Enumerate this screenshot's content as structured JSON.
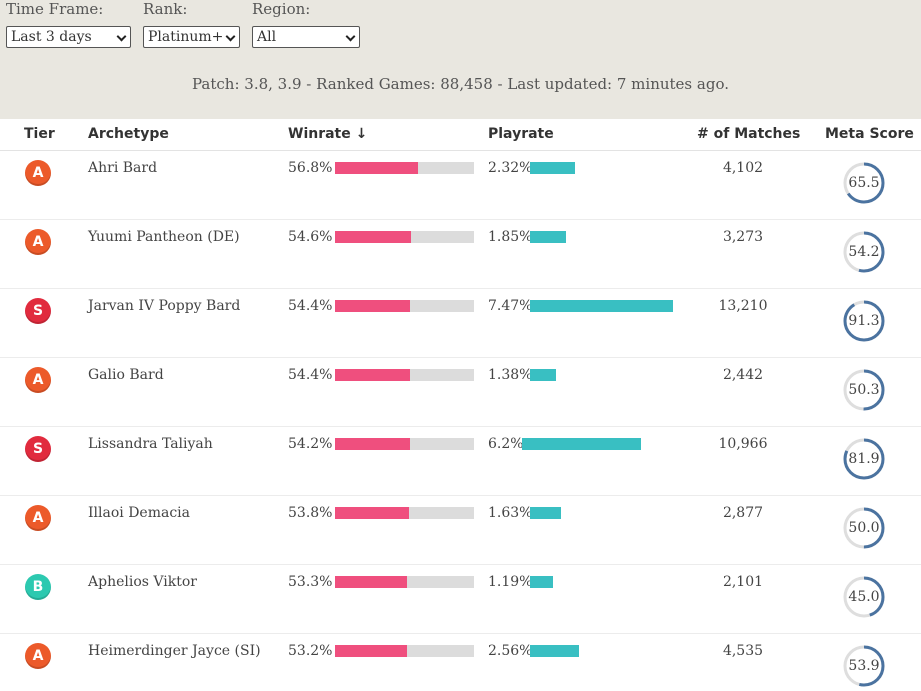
{
  "filters": {
    "time_frame": {
      "label": "Time Frame:",
      "value": "Last 3 days"
    },
    "rank": {
      "label": "Rank:",
      "value": "Platinum+"
    },
    "region": {
      "label": "Region:",
      "value": "All"
    }
  },
  "status_line": "Patch: 3.8, 3.9 - Ranked Games: 88,458 - Last updated: 7 minutes ago.",
  "columns": {
    "tier": "Tier",
    "archetype": "Archetype",
    "winrate": "Winrate ↓",
    "playrate": "Playrate",
    "matches": "# of Matches",
    "meta_score": "Meta Score"
  },
  "colors": {
    "winrate_bar": "#ef4f7e",
    "playrate_bar": "#39bfc2",
    "tier_A": "#ec5a2a",
    "tier_S": "#e12b3e",
    "tier_B": "#2cc9b0",
    "ring": "#4b73a0"
  },
  "rows": [
    {
      "tier": "A",
      "archetype": "Ahri Bard",
      "winrate": "56.8%",
      "winrate_value": 56.8,
      "playrate": "2.32%",
      "playrate_value": 2.32,
      "matches": "4,102",
      "meta_score": "65.5",
      "meta_value": 65.5
    },
    {
      "tier": "A",
      "archetype": "Yuumi Pantheon (DE)",
      "winrate": "54.6%",
      "winrate_value": 54.6,
      "playrate": "1.85%",
      "playrate_value": 1.85,
      "matches": "3,273",
      "meta_score": "54.2",
      "meta_value": 54.2
    },
    {
      "tier": "S",
      "archetype": "Jarvan IV Poppy Bard",
      "winrate": "54.4%",
      "winrate_value": 54.4,
      "playrate": "7.47%",
      "playrate_value": 7.47,
      "matches": "13,210",
      "meta_score": "91.3",
      "meta_value": 91.3
    },
    {
      "tier": "A",
      "archetype": "Galio Bard",
      "winrate": "54.4%",
      "winrate_value": 54.4,
      "playrate": "1.38%",
      "playrate_value": 1.38,
      "matches": "2,442",
      "meta_score": "50.3",
      "meta_value": 50.3
    },
    {
      "tier": "S",
      "archetype": "Lissandra Taliyah",
      "winrate": "54.2%",
      "winrate_value": 54.2,
      "playrate": "6.2%",
      "playrate_value": 6.2,
      "matches": "10,966",
      "meta_score": "81.9",
      "meta_value": 81.9
    },
    {
      "tier": "A",
      "archetype": "Illaoi Demacia",
      "winrate": "53.8%",
      "winrate_value": 53.8,
      "playrate": "1.63%",
      "playrate_value": 1.63,
      "matches": "2,877",
      "meta_score": "50.0",
      "meta_value": 50.0
    },
    {
      "tier": "B",
      "archetype": "Aphelios Viktor",
      "winrate": "53.3%",
      "winrate_value": 53.3,
      "playrate": "1.19%",
      "playrate_value": 1.19,
      "matches": "2,101",
      "meta_score": "45.0",
      "meta_value": 45.0
    },
    {
      "tier": "A",
      "archetype": "Heimerdinger Jayce (SI)",
      "winrate": "53.2%",
      "winrate_value": 53.2,
      "playrate": "2.56%",
      "playrate_value": 2.56,
      "matches": "4,535",
      "meta_score": "53.9",
      "meta_value": 53.9
    }
  ]
}
